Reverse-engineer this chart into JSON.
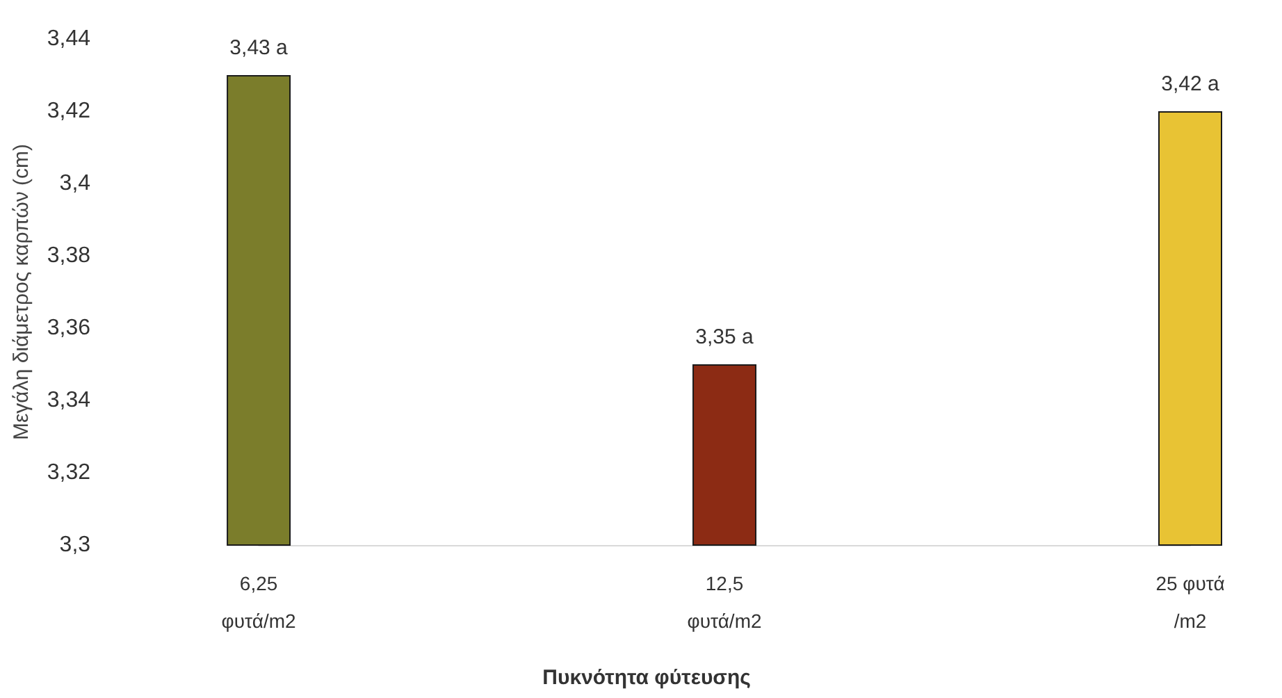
{
  "chart_data": {
    "type": "bar",
    "xlabel": "Πυκνότητα φύτευσης",
    "ylabel": "Μεγάλη διάμετρος καρπών (cm)",
    "categories": [
      "6,25\nφυτά/m2",
      "12,5\nφυτά/m2",
      "25 φυτά\n/m2"
    ],
    "values": [
      3.43,
      3.35,
      3.42
    ],
    "colors": [
      "#7b7d2b",
      "#8c2b14",
      "#e8c334"
    ],
    "value_labels": [
      "3,43 a",
      "3,35 a",
      "3,42 a"
    ],
    "ylim": [
      3.3,
      3.44
    ],
    "yticks": [
      {
        "value": 3.3,
        "label": "3,3"
      },
      {
        "value": 3.32,
        "label": "3,32"
      },
      {
        "value": 3.34,
        "label": "3,34"
      },
      {
        "value": 3.36,
        "label": "3,36"
      },
      {
        "value": 3.38,
        "label": "3,38"
      },
      {
        "value": 3.4,
        "label": "3,4"
      },
      {
        "value": 3.42,
        "label": "3,42"
      },
      {
        "value": 3.44,
        "label": "3,44"
      }
    ],
    "grid": false
  }
}
